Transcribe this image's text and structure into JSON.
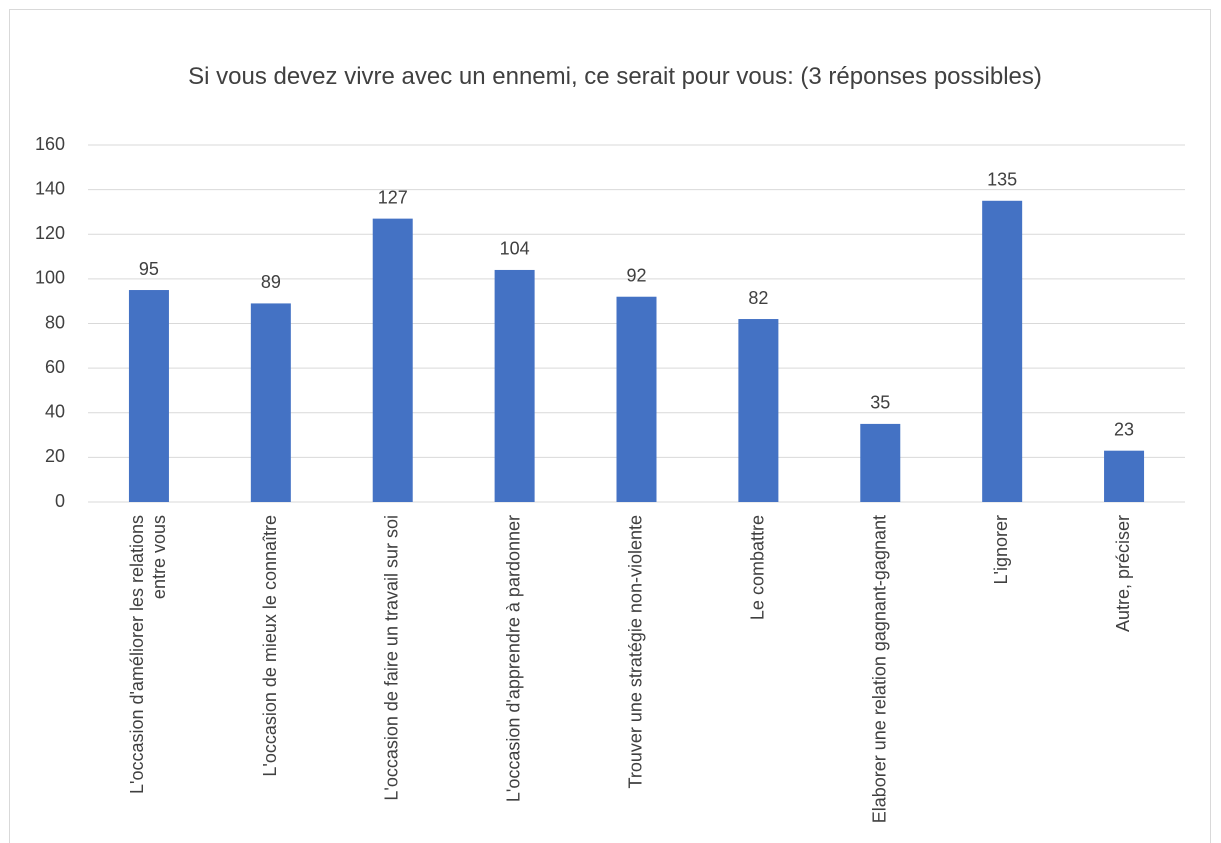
{
  "chart_data": {
    "type": "bar",
    "title": "Si vous devez vivre avec un ennemi, ce serait pour vous: (3 réponses possibles)",
    "categories": [
      "L'occasion d'améliorer les relations entre vous",
      "L'occasion de mieux le connaître",
      "L'occasion de faire un travail sur soi",
      "L'occasion d'apprendre à pardonner",
      "Trouver une stratégie non-violente",
      "Le combattre",
      "Elaborer une relation gagnant-gagnant",
      "L'ignorer",
      "Autre, préciser"
    ],
    "values": [
      95,
      89,
      127,
      104,
      92,
      82,
      35,
      135,
      23
    ],
    "color": "#4472c4",
    "ylim": [
      0,
      160
    ],
    "yticks": [
      0,
      20,
      40,
      60,
      80,
      100,
      120,
      140,
      160
    ],
    "grid": true
  }
}
